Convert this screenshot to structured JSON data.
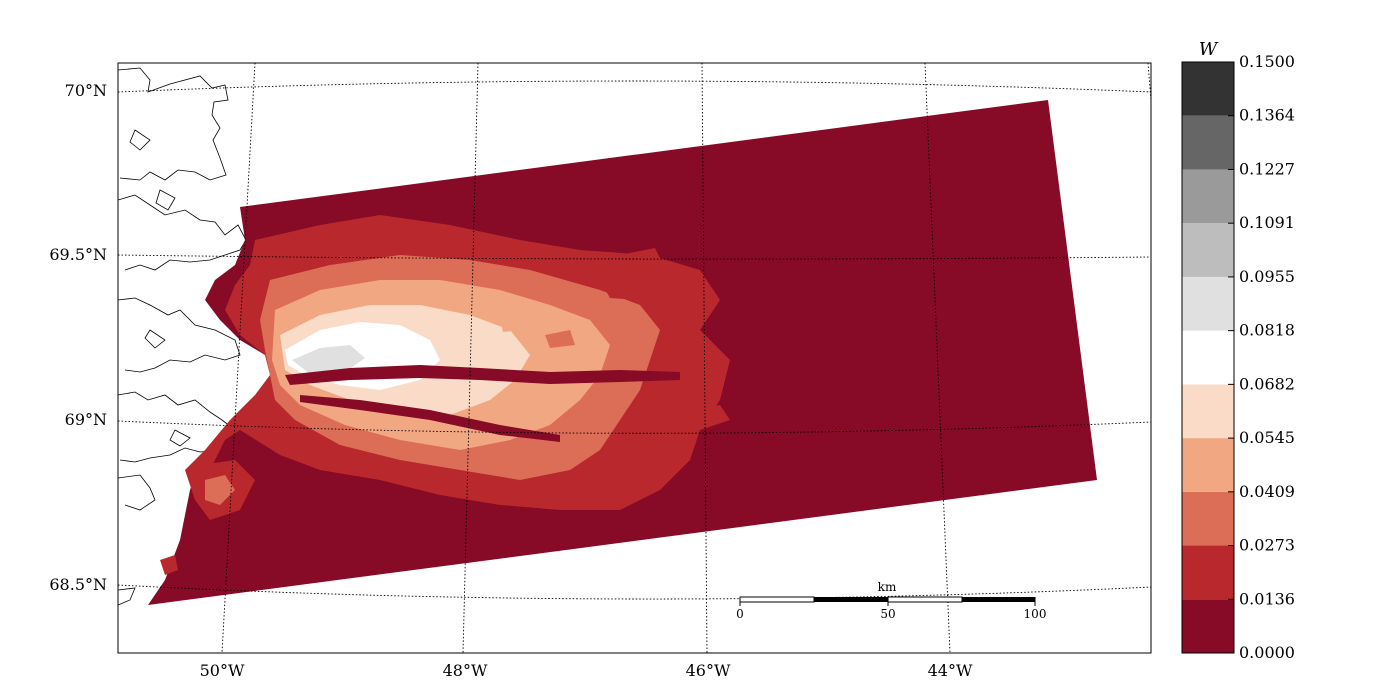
{
  "colorbar": {
    "title": "W",
    "ticks": [
      "0.0000",
      "0.0136",
      "0.0273",
      "0.0409",
      "0.0545",
      "0.0682",
      "0.0818",
      "0.0955",
      "0.1091",
      "0.1227",
      "0.1364",
      "0.1500"
    ],
    "colors": [
      "#870a26",
      "#b9282d",
      "#dc6d57",
      "#f2a783",
      "#fadbc8",
      "#ffffff",
      "#e0e0e0",
      "#bdbdbd",
      "#9a9a9a",
      "#666666",
      "#333333"
    ]
  },
  "map": {
    "lat_labels": [
      "70°N",
      "69.5°N",
      "69°N",
      "68.5°N"
    ],
    "lon_labels": [
      "50°W",
      "48°W",
      "46°W",
      "44°W"
    ],
    "scalebar": {
      "unit_label": "km",
      "tick_labels": [
        "0",
        "50",
        "100"
      ]
    }
  },
  "chart_data": {
    "type": "heatmap",
    "variable": "W",
    "value_range": [
      0.0,
      0.15
    ],
    "levels": [
      0.0,
      0.0136,
      0.0273,
      0.0409,
      0.0545,
      0.0682,
      0.0818,
      0.0955,
      0.1091,
      0.1227,
      0.1364,
      0.15
    ],
    "lat_range": [
      68.4,
      70.1
    ],
    "lon_range": [
      -51.0,
      -42.5
    ],
    "background_value": 0.005,
    "max_region_value": 0.09,
    "grid": true,
    "projection": "conic"
  }
}
